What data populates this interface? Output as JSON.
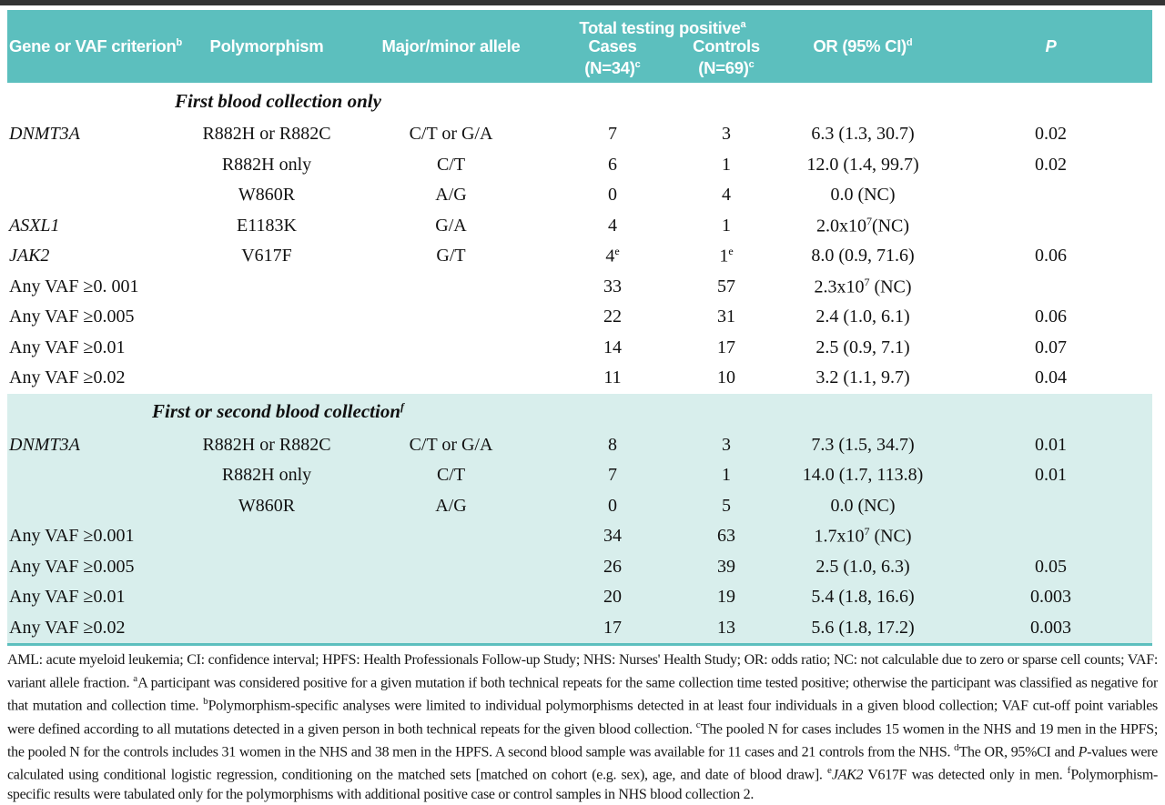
{
  "colors": {
    "header_teal": "#5cbfbe",
    "tinted_section_bg": "#d8eeec",
    "top_rule": "#333333",
    "header_text": "#ffffff",
    "body_text": "#111111"
  },
  "table": {
    "header": {
      "gene": "Gene or VAF criterion",
      "gene_sup": "b",
      "polymorphism": "Polymorphism",
      "allele": "Major/minor allele",
      "total_positive": "Total testing positive",
      "total_positive_sup": "a",
      "cases_line1": "Cases",
      "cases_line2": "(N=34)",
      "cases_sup": "c",
      "controls_line1": "Controls",
      "controls_line2": "(N=69)",
      "controls_sup": "c",
      "or": "OR (95% CI)",
      "or_sup": "d",
      "p": "P"
    },
    "sections": [
      {
        "title": "First blood collection only",
        "title_sup": "",
        "tinted": false,
        "rows": [
          {
            "gene": "DNMT3A",
            "italic": true,
            "poly": "R882H or R882C",
            "allele": "C/T or G/A",
            "cases": "7",
            "cases_sup": "",
            "controls": "3",
            "controls_sup": "",
            "or_pre": "6.3 (1.3, 30.7)",
            "or_sup": "",
            "or_post": "",
            "p": "0.02"
          },
          {
            "gene": "",
            "italic": false,
            "poly": "R882H only",
            "allele": "C/T",
            "cases": "6",
            "cases_sup": "",
            "controls": "1",
            "controls_sup": "",
            "or_pre": "12.0 (1.4, 99.7)",
            "or_sup": "",
            "or_post": "",
            "p": "0.02"
          },
          {
            "gene": "",
            "italic": false,
            "poly": "W860R",
            "allele": "A/G",
            "cases": "0",
            "cases_sup": "",
            "controls": "4",
            "controls_sup": "",
            "or_pre": "0.0 (NC)",
            "or_sup": "",
            "or_post": "",
            "p": ""
          },
          {
            "gene": "ASXL1",
            "italic": true,
            "poly": "E1183K",
            "allele": "G/A",
            "cases": "4",
            "cases_sup": "",
            "controls": "1",
            "controls_sup": "",
            "or_pre": "2.0x10",
            "or_sup": "7",
            "or_post": "(NC)",
            "p": ""
          },
          {
            "gene": "JAK2",
            "italic": true,
            "poly": "V617F",
            "allele": "G/T",
            "cases": "4",
            "cases_sup": "e",
            "controls": "1",
            "controls_sup": "e",
            "or_pre": "8.0 (0.9, 71.6)",
            "or_sup": "",
            "or_post": "",
            "p": "0.06"
          },
          {
            "gene": "Any VAF ≥0. 001",
            "italic": false,
            "poly": "",
            "allele": "",
            "cases": "33",
            "cases_sup": "",
            "controls": "57",
            "controls_sup": "",
            "or_pre": "2.3x10",
            "or_sup": "7",
            "or_post": " (NC)",
            "p": ""
          },
          {
            "gene": "Any VAF ≥0.005",
            "italic": false,
            "poly": "",
            "allele": "",
            "cases": "22",
            "cases_sup": "",
            "controls": "31",
            "controls_sup": "",
            "or_pre": "2.4 (1.0, 6.1)",
            "or_sup": "",
            "or_post": "",
            "p": "0.06"
          },
          {
            "gene": "Any VAF ≥0.01",
            "italic": false,
            "poly": "",
            "allele": "",
            "cases": "14",
            "cases_sup": "",
            "controls": "17",
            "controls_sup": "",
            "or_pre": "2.5 (0.9, 7.1)",
            "or_sup": "",
            "or_post": "",
            "p": "0.07"
          },
          {
            "gene": "Any VAF ≥0.02",
            "italic": false,
            "poly": "",
            "allele": "",
            "cases": "11",
            "cases_sup": "",
            "controls": "10",
            "controls_sup": "",
            "or_pre": "3.2 (1.1, 9.7)",
            "or_sup": "",
            "or_post": "",
            "p": "0.04"
          }
        ]
      },
      {
        "title": "First or second blood collection",
        "title_sup": "f",
        "tinted": true,
        "rows": [
          {
            "gene": "DNMT3A",
            "italic": true,
            "poly": "R882H or R882C",
            "allele": "C/T or G/A",
            "cases": "8",
            "cases_sup": "",
            "controls": "3",
            "controls_sup": "",
            "or_pre": "7.3 (1.5, 34.7)",
            "or_sup": "",
            "or_post": "",
            "p": "0.01"
          },
          {
            "gene": "",
            "italic": false,
            "poly": "R882H only",
            "allele": "C/T",
            "cases": "7",
            "cases_sup": "",
            "controls": "1",
            "controls_sup": "",
            "or_pre": "14.0 (1.7, 113.8)",
            "or_sup": "",
            "or_post": "",
            "p": "0.01"
          },
          {
            "gene": "",
            "italic": false,
            "poly": "W860R",
            "allele": "A/G",
            "cases": "0",
            "cases_sup": "",
            "controls": "5",
            "controls_sup": "",
            "or_pre": "0.0 (NC)",
            "or_sup": "",
            "or_post": "",
            "p": ""
          },
          {
            "gene": "Any VAF ≥0.001",
            "italic": false,
            "poly": "",
            "allele": "",
            "cases": "34",
            "cases_sup": "",
            "controls": "63",
            "controls_sup": "",
            "or_pre": "1.7x10",
            "or_sup": "7",
            "or_post": " (NC)",
            "p": ""
          },
          {
            "gene": "Any VAF ≥0.005",
            "italic": false,
            "poly": "",
            "allele": "",
            "cases": "26",
            "cases_sup": "",
            "controls": "39",
            "controls_sup": "",
            "or_pre": "2.5 (1.0, 6.3)",
            "or_sup": "",
            "or_post": "",
            "p": "0.05"
          },
          {
            "gene": "Any VAF ≥0.01",
            "italic": false,
            "poly": "",
            "allele": "",
            "cases": "20",
            "cases_sup": "",
            "controls": "19",
            "controls_sup": "",
            "or_pre": "5.4 (1.8, 16.6)",
            "or_sup": "",
            "or_post": "",
            "p": "0.003"
          },
          {
            "gene": "Any VAF ≥0.02",
            "italic": false,
            "poly": "",
            "allele": "",
            "cases": "17",
            "cases_sup": "",
            "controls": "13",
            "controls_sup": "",
            "or_pre": "5.6 (1.8, 17.2)",
            "or_sup": "",
            "or_post": "",
            "p": "0.003"
          }
        ]
      }
    ]
  },
  "footnotes": {
    "segments": [
      {
        "t": "AML: acute myeloid leukemia; CI: confidence interval; HPFS: Health Professionals Follow-up Study; NHS: Nurses' Health Study; OR: odds ratio; NC: not calculable due to zero or sparse cell counts; VAF: variant allele fraction. "
      },
      {
        "t": "a",
        "s": "sup"
      },
      {
        "t": "A participant was considered positive for a given mutation if both technical repeats for the same collection time tested positive; otherwise the participant was classified as negative for that mutation and collection time. "
      },
      {
        "t": "b",
        "s": "sup"
      },
      {
        "t": "Polymorphism-specific analyses were limited to individual polymorphisms detected in at least four individuals in a given blood collection; VAF cut-off point variables were defined according to all mutations detected in a given person in both technical repeats for the given blood collection. "
      },
      {
        "t": "c",
        "s": "sup"
      },
      {
        "t": "The pooled N for cases includes 15 women in the NHS and 19 men in the HPFS; the pooled N for the controls includes 31 women in the NHS and 38 men in the HPFS. A second blood sample was available for 11 cases and 21 controls from the NHS. "
      },
      {
        "t": "d",
        "s": "sup"
      },
      {
        "t": "The OR, 95%CI and "
      },
      {
        "t": "P",
        "s": "i"
      },
      {
        "t": "-values were calculated using conditional logistic regression, conditioning on the matched sets [matched on cohort (e.g. sex), age, and date of blood draw]. "
      },
      {
        "t": "e",
        "s": "sup"
      },
      {
        "t": "JAK2",
        "s": "i"
      },
      {
        "t": " V617F was detected only in men. "
      },
      {
        "t": "f",
        "s": "sup"
      },
      {
        "t": "Polymorphism-specific results were tabulated only for the polymorphisms with additional positive case or control samples in NHS blood collection 2."
      }
    ]
  }
}
